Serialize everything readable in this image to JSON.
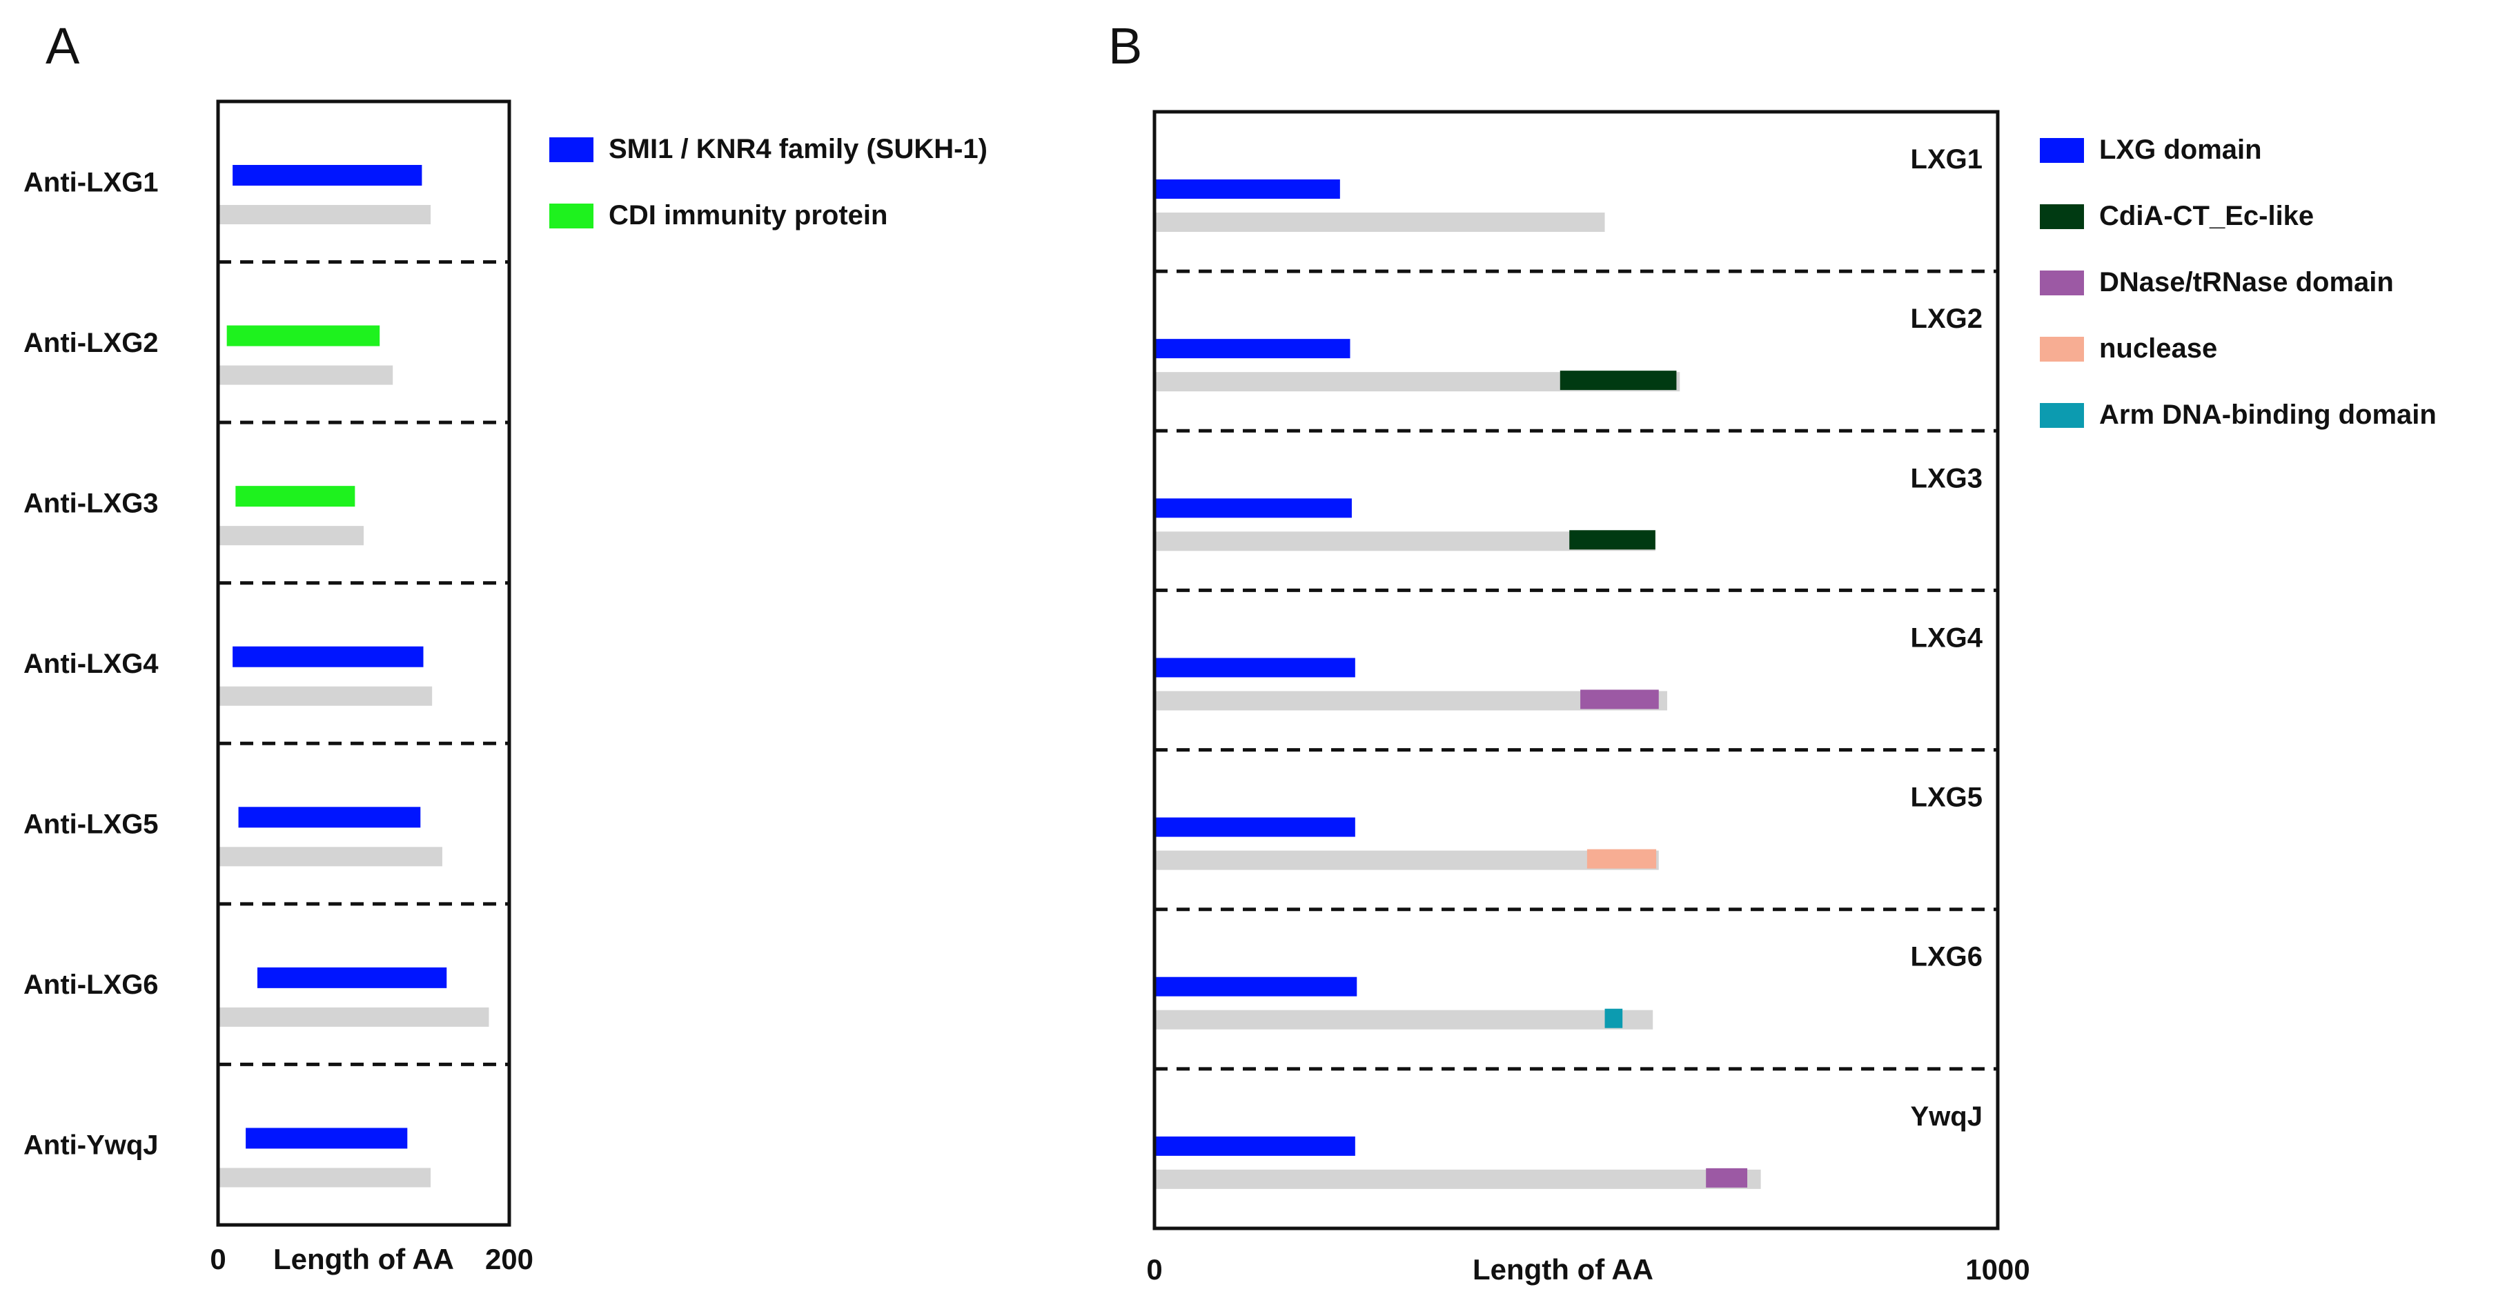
{
  "chart_data": [
    {
      "panel": "A",
      "type": "bar",
      "xlabel": "Length of AA",
      "xlim": [
        0,
        200
      ],
      "xticks": [
        "0",
        "200"
      ],
      "grid": false,
      "legend": {
        "position": "right",
        "entries": [
          {
            "name": "SMI1 / KNR4 family (SUKH-1)",
            "color": "#0015ff"
          },
          {
            "name": "CDI immunity protein",
            "color": "#1ef21e"
          }
        ]
      },
      "rows": [
        {
          "label": "Anti-LXG1",
          "length": 146,
          "domains": [
            {
              "type": "SMI1 / KNR4 family (SUKH-1)",
              "start": 10,
              "end": 140
            }
          ]
        },
        {
          "label": "Anti-LXG2",
          "length": 120,
          "domains": [
            {
              "type": "CDI immunity protein",
              "start": 6,
              "end": 111
            }
          ]
        },
        {
          "label": "Anti-LXG3",
          "length": 100,
          "domains": [
            {
              "type": "CDI immunity protein",
              "start": 12,
              "end": 94
            }
          ]
        },
        {
          "label": "Anti-LXG4",
          "length": 147,
          "domains": [
            {
              "type": "SMI1 / KNR4 family (SUKH-1)",
              "start": 10,
              "end": 141
            }
          ]
        },
        {
          "label": "Anti-LXG5",
          "length": 154,
          "domains": [
            {
              "type": "SMI1 / KNR4 family (SUKH-1)",
              "start": 14,
              "end": 139
            }
          ]
        },
        {
          "label": "Anti-LXG6",
          "length": 186,
          "domains": [
            {
              "type": "SMI1 / KNR4 family (SUKH-1)",
              "start": 27,
              "end": 157
            }
          ]
        },
        {
          "label": "Anti-YwqJ",
          "length": 146,
          "domains": [
            {
              "type": "SMI1 / KNR4 family (SUKH-1)",
              "start": 19,
              "end": 130
            }
          ]
        }
      ]
    },
    {
      "panel": "B",
      "type": "bar",
      "xlabel": "Length of AA",
      "xlim": [
        0,
        1000
      ],
      "xticks": [
        "0",
        "1000"
      ],
      "grid": false,
      "legend": {
        "position": "right",
        "entries": [
          {
            "name": "LXG domain",
            "color": "#0015ff"
          },
          {
            "name": "CdiA-CT_Ec-like",
            "color": "#003a12"
          },
          {
            "name": "DNase/tRNase domain",
            "color": "#9c59a4"
          },
          {
            "name": "nuclease",
            "color": "#f7ad93"
          },
          {
            "name": "Arm DNA-binding domain",
            "color": "#0c9bb0"
          }
        ]
      },
      "rows": [
        {
          "label": "LXG1",
          "length": 534,
          "domains": [
            {
              "type": "LXG domain",
              "start": 0,
              "end": 220
            }
          ]
        },
        {
          "label": "LXG2",
          "length": 623,
          "domains": [
            {
              "type": "LXG domain",
              "start": 0,
              "end": 232
            },
            {
              "type": "CdiA-CT_Ec-like",
              "start": 481,
              "end": 619
            }
          ]
        },
        {
          "label": "LXG3",
          "length": 594,
          "domains": [
            {
              "type": "LXG domain",
              "start": 0,
              "end": 234
            },
            {
              "type": "CdiA-CT_Ec-like",
              "start": 492,
              "end": 594
            }
          ]
        },
        {
          "label": "LXG4",
          "length": 608,
          "domains": [
            {
              "type": "LXG domain",
              "start": 0,
              "end": 238
            },
            {
              "type": "DNase/tRNase domain",
              "start": 505,
              "end": 598
            }
          ]
        },
        {
          "label": "LXG5",
          "length": 598,
          "domains": [
            {
              "type": "LXG domain",
              "start": 0,
              "end": 238
            },
            {
              "type": "nuclease",
              "start": 513,
              "end": 595
            }
          ]
        },
        {
          "label": "LXG6",
          "length": 591,
          "domains": [
            {
              "type": "LXG domain",
              "start": 0,
              "end": 240
            },
            {
              "type": "Arm DNA-binding domain",
              "start": 534,
              "end": 555
            }
          ]
        },
        {
          "label": "YwqJ",
          "length": 719,
          "domains": [
            {
              "type": "LXG domain",
              "start": 0,
              "end": 238
            },
            {
              "type": "DNase/tRNase domain",
              "start": 654,
              "end": 703
            }
          ]
        }
      ]
    }
  ]
}
